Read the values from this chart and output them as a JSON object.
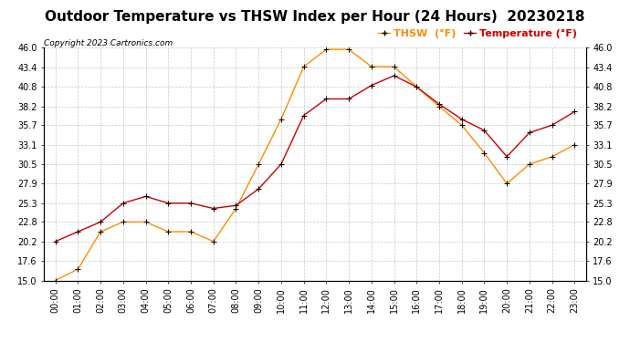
{
  "title": "Outdoor Temperature vs THSW Index per Hour (24 Hours)  20230218",
  "copyright": "Copyright 2023 Cartronics.com",
  "hours": [
    "00:00",
    "01:00",
    "02:00",
    "03:00",
    "04:00",
    "05:00",
    "06:00",
    "07:00",
    "08:00",
    "09:00",
    "10:00",
    "11:00",
    "12:00",
    "13:00",
    "14:00",
    "15:00",
    "16:00",
    "17:00",
    "18:00",
    "19:00",
    "20:00",
    "21:00",
    "22:00",
    "23:00"
  ],
  "temperature": [
    20.2,
    21.5,
    22.8,
    25.3,
    26.2,
    25.3,
    25.3,
    24.6,
    25.0,
    27.2,
    30.5,
    37.0,
    39.2,
    39.2,
    41.0,
    42.3,
    40.8,
    38.5,
    36.5,
    35.0,
    31.5,
    34.7,
    35.7,
    37.5
  ],
  "thsw": [
    15.0,
    16.5,
    21.5,
    22.8,
    22.8,
    21.5,
    21.5,
    20.2,
    24.6,
    30.5,
    36.5,
    43.5,
    45.8,
    45.8,
    43.5,
    43.5,
    40.8,
    38.2,
    35.7,
    32.0,
    27.9,
    30.5,
    31.5,
    33.1
  ],
  "temp_color": "#cc0000",
  "thsw_color": "#ff8c00",
  "marker_color": "black",
  "ylim": [
    15.0,
    46.0
  ],
  "yticks": [
    15.0,
    17.6,
    20.2,
    22.8,
    25.3,
    27.9,
    30.5,
    33.1,
    35.7,
    38.2,
    40.8,
    43.4,
    46.0
  ],
  "background_color": "#ffffff",
  "grid_color": "#c8c8c8",
  "title_fontsize": 11,
  "tick_fontsize": 7,
  "legend_thsw": "THSW  (°F)",
  "legend_temp": "Temperature (°F)"
}
